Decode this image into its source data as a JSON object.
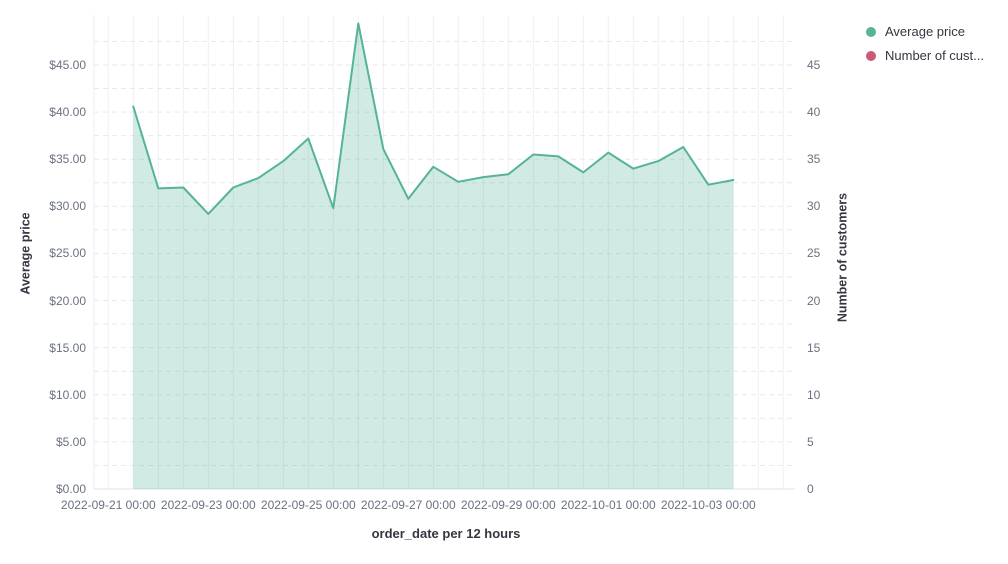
{
  "legend": {
    "position": "top-right",
    "items": [
      {
        "label": "Average price",
        "color": "#54b399"
      },
      {
        "label": "Number of cust...",
        "color": "#cb5b74"
      }
    ]
  },
  "chart_data": {
    "type": "area",
    "title": "",
    "xlabel": "order_date per 12 hours",
    "ylabel_left": "Average price",
    "ylabel_right": "Number of customers",
    "x_ticks": [
      "2022-09-21 00:00",
      "2022-09-23 00:00",
      "2022-09-25 00:00",
      "2022-09-27 00:00",
      "2022-09-29 00:00",
      "2022-10-01 00:00",
      "2022-10-03 00:00"
    ],
    "y_ticks_left": [
      "$0.00",
      "$5.00",
      "$10.00",
      "$15.00",
      "$20.00",
      "$25.00",
      "$30.00",
      "$35.00",
      "$40.00",
      "$45.00"
    ],
    "y_ticks_left_values": [
      0,
      5,
      10,
      15,
      20,
      25,
      30,
      35,
      40,
      45
    ],
    "y_ticks_right": [
      "0",
      "5",
      "10",
      "15",
      "20",
      "25",
      "30",
      "35",
      "40",
      "45"
    ],
    "y_ticks_right_values": [
      0,
      5,
      10,
      15,
      20,
      25,
      30,
      35,
      40,
      45
    ],
    "ylim_left": [
      0,
      50
    ],
    "ylim_right": [
      0,
      50
    ],
    "grid": true,
    "legend_position": "top-right",
    "series": [
      {
        "name": "Average price",
        "axis": "left",
        "color": "#54b399",
        "fill_color": "rgba(84,179,153,0.27)",
        "x": [
          "2022-09-21 12:00",
          "2022-09-22 00:00",
          "2022-09-22 12:00",
          "2022-09-23 00:00",
          "2022-09-23 12:00",
          "2022-09-24 00:00",
          "2022-09-24 12:00",
          "2022-09-25 00:00",
          "2022-09-25 12:00",
          "2022-09-26 00:00",
          "2022-09-26 12:00",
          "2022-09-27 00:00",
          "2022-09-27 12:00",
          "2022-09-28 00:00",
          "2022-09-28 12:00",
          "2022-09-29 00:00",
          "2022-09-29 12:00",
          "2022-09-30 00:00",
          "2022-09-30 12:00",
          "2022-10-01 00:00",
          "2022-10-01 12:00",
          "2022-10-02 00:00",
          "2022-10-02 12:00",
          "2022-10-03 00:00",
          "2022-10-03 12:00"
        ],
        "values": [
          40.6,
          31.9,
          32.0,
          29.2,
          32.0,
          33.0,
          34.8,
          37.2,
          29.8,
          49.4,
          36.1,
          30.8,
          34.2,
          32.6,
          33.1,
          33.4,
          35.5,
          35.3,
          33.6,
          35.7,
          34.0,
          34.8,
          36.3,
          32.3,
          32.8
        ]
      },
      {
        "name": "Number of cust...",
        "axis": "right",
        "color": "#cb5b74",
        "x": [],
        "values": []
      }
    ]
  },
  "grid_colors": {
    "vertical": "#eef0f4",
    "horizontal_dashed": "#e6e9ee",
    "baseline": "#dde1e7",
    "left_edge": "#e9ecf0"
  }
}
